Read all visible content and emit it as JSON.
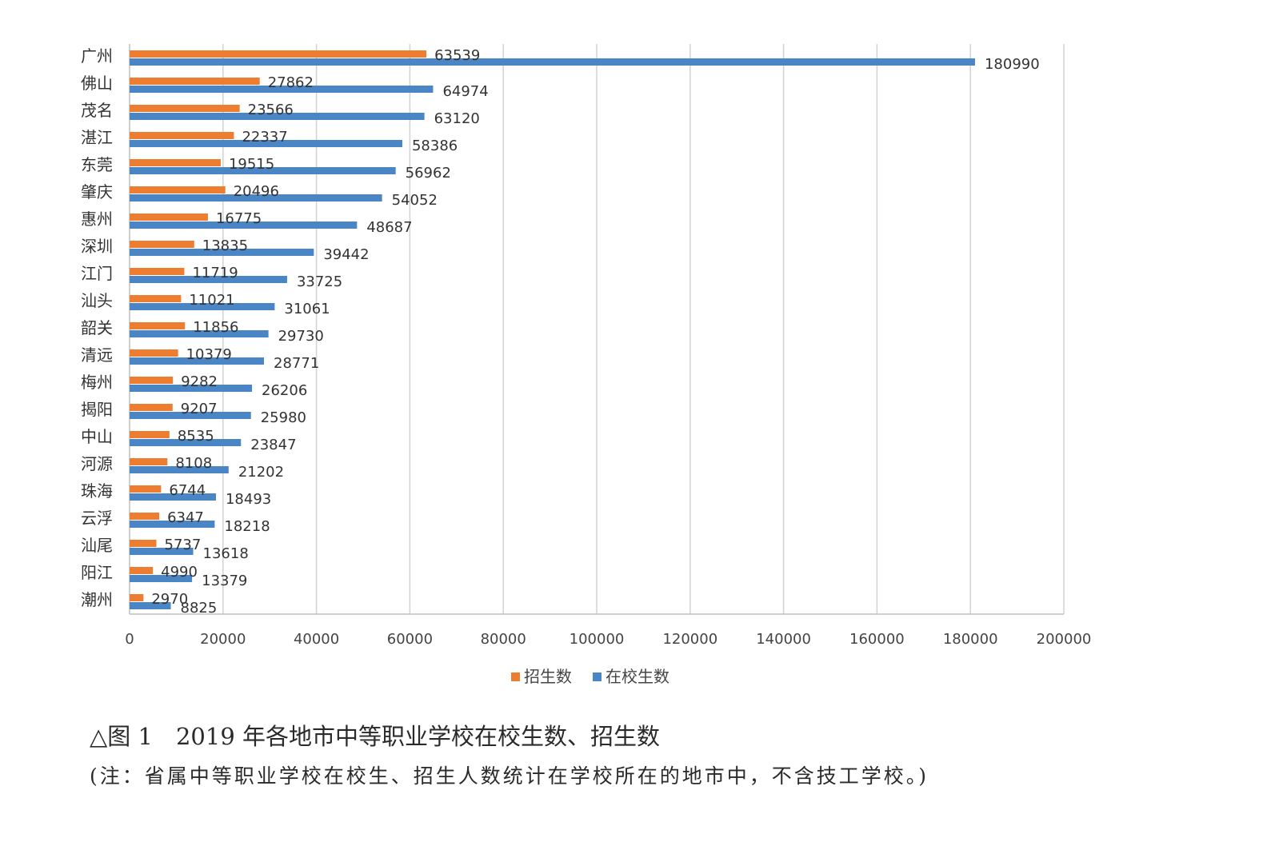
{
  "chart_data": {
    "type": "bar",
    "orientation": "horizontal",
    "categories": [
      "广州",
      "佛山",
      "茂名",
      "湛江",
      "东莞",
      "肇庆",
      "惠州",
      "深圳",
      "江门",
      "汕头",
      "韶关",
      "清远",
      "梅州",
      "揭阳",
      "中山",
      "河源",
      "珠海",
      "云浮",
      "汕尾",
      "阳江",
      "潮州"
    ],
    "series": [
      {
        "name": "招生数",
        "color": "#ED7D31",
        "values": [
          63539,
          27862,
          23566,
          22337,
          19515,
          20496,
          16775,
          13835,
          11719,
          11021,
          11856,
          10379,
          9282,
          9207,
          8535,
          8108,
          6744,
          6347,
          5737,
          4990,
          2970
        ]
      },
      {
        "name": "在校生数",
        "color": "#4A86C5",
        "values": [
          180990,
          64974,
          63120,
          58386,
          56962,
          54052,
          48687,
          39442,
          33725,
          31061,
          29730,
          28771,
          26206,
          25980,
          23847,
          21202,
          18493,
          18218,
          13618,
          13379,
          8825
        ]
      }
    ],
    "xlim": [
      0,
      200000
    ],
    "x_ticks": [
      0,
      20000,
      40000,
      60000,
      80000,
      100000,
      120000,
      140000,
      160000,
      180000,
      200000
    ],
    "grid": true,
    "legend_position": "bottom"
  },
  "caption": {
    "title": "△图 1　2019 年各地市中等职业学校在校生数、招生数",
    "note": "(注：省属中等职业学校在校生、招生人数统计在学校所在的地市中，不含技工学校。)"
  }
}
